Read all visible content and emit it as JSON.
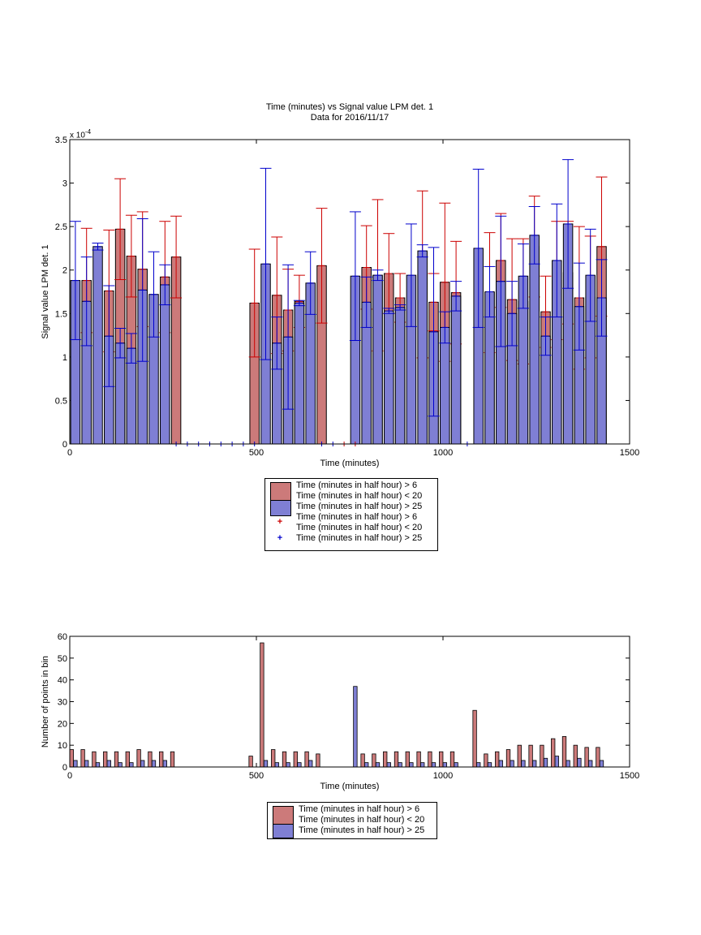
{
  "chart_data": [
    {
      "type": "bar",
      "title": "Time (minutes) vs Signal value LPM det. 1",
      "subtitle": "Data for 2016/11/17",
      "xlabel": "Time (minutes)",
      "ylabel": "Signal value LPM det. 1",
      "exponent_label": "x 10",
      "exponent_power": "-4",
      "xlim": [
        0,
        1500
      ],
      "ylim": [
        0,
        3.5
      ],
      "x_ticks": [
        "0",
        "500",
        "1000",
        "1500"
      ],
      "y_ticks": [
        "0",
        "0.5",
        "1",
        "1.5",
        "2",
        "2.5",
        "3",
        "3.5"
      ],
      "bar_width_minutes": 25,
      "series": [
        {
          "name": "Time (minutes in half hour) > 6 Time (minutes in half hour) < 20",
          "color": "#cc7a7a",
          "points": [
            {
              "x": 45,
              "y": 1.88,
              "err": 0.6
            },
            {
              "x": 105,
              "y": 1.76,
              "err": 0.7
            },
            {
              "x": 135,
              "y": 2.47,
              "err": 0.58
            },
            {
              "x": 165,
              "y": 2.16,
              "err": 0.47
            },
            {
              "x": 195,
              "y": 2.01,
              "err": 0.66
            },
            {
              "x": 255,
              "y": 1.92,
              "err": 0.64
            },
            {
              "x": 285,
              "y": 2.15,
              "err": 0.47
            },
            {
              "x": 495,
              "y": 1.62,
              "err": 0.62
            },
            {
              "x": 555,
              "y": 1.71,
              "err": 0.67
            },
            {
              "x": 585,
              "y": 1.54,
              "err": 0.47
            },
            {
              "x": 615,
              "y": 1.64,
              "err": 0.3
            },
            {
              "x": 675,
              "y": 2.05,
              "err": 0.66
            },
            {
              "x": 795,
              "y": 2.03,
              "err": 0.48
            },
            {
              "x": 825,
              "y": 1.94,
              "err": 0.87
            },
            {
              "x": 855,
              "y": 1.96,
              "err": 0.46
            },
            {
              "x": 885,
              "y": 1.68,
              "err": 0.28
            },
            {
              "x": 945,
              "y": 1.95,
              "err": 0.96
            },
            {
              "x": 975,
              "y": 1.63,
              "err": 0.33
            },
            {
              "x": 1005,
              "y": 1.86,
              "err": 0.91
            },
            {
              "x": 1035,
              "y": 1.74,
              "err": 0.59
            },
            {
              "x": 1125,
              "y": 1.74,
              "err": 0.69
            },
            {
              "x": 1155,
              "y": 2.11,
              "err": 0.54
            },
            {
              "x": 1185,
              "y": 1.66,
              "err": 0.7
            },
            {
              "x": 1215,
              "y": 1.64,
              "err": 0.72
            },
            {
              "x": 1245,
              "y": 2.27,
              "err": 0.58
            },
            {
              "x": 1275,
              "y": 1.52,
              "err": 0.41
            },
            {
              "x": 1305,
              "y": 1.88,
              "err": 0.68
            },
            {
              "x": 1335,
              "y": 1.97,
              "err": 0.59
            },
            {
              "x": 1365,
              "y": 1.68,
              "err": 0.82
            },
            {
              "x": 1395,
              "y": 1.69,
              "err": 0.7
            },
            {
              "x": 1425,
              "y": 2.27,
              "err": 0.8
            }
          ]
        },
        {
          "name": "Time (minutes in half hour) > 25",
          "color": "#7f7fd4",
          "points": [
            {
              "x": 15,
              "y": 1.88,
              "err": 0.68
            },
            {
              "x": 45,
              "y": 1.64,
              "err": 0.51
            },
            {
              "x": 75,
              "y": 2.27,
              "err": 0.04
            },
            {
              "x": 105,
              "y": 1.24,
              "err": 0.58
            },
            {
              "x": 135,
              "y": 1.16,
              "err": 0.17
            },
            {
              "x": 165,
              "y": 1.1,
              "err": 0.17
            },
            {
              "x": 195,
              "y": 1.77,
              "err": 0.82
            },
            {
              "x": 225,
              "y": 1.72,
              "err": 0.49
            },
            {
              "x": 255,
              "y": 1.83,
              "err": 0.23
            },
            {
              "x": 525,
              "y": 2.07,
              "err": 1.1
            },
            {
              "x": 555,
              "y": 1.16,
              "err": 0.3
            },
            {
              "x": 585,
              "y": 1.23,
              "err": 0.83
            },
            {
              "x": 615,
              "y": 1.62,
              "err": 0.03
            },
            {
              "x": 645,
              "y": 1.85,
              "err": 0.36
            },
            {
              "x": 765,
              "y": 1.93,
              "err": 0.74
            },
            {
              "x": 795,
              "y": 1.63,
              "err": 0.29
            },
            {
              "x": 825,
              "y": 1.94,
              "err": 0.06
            },
            {
              "x": 855,
              "y": 1.53,
              "err": 0.03
            },
            {
              "x": 885,
              "y": 1.57,
              "err": 0.03
            },
            {
              "x": 915,
              "y": 1.94,
              "err": 0.59
            },
            {
              "x": 945,
              "y": 2.22,
              "err": 0.07
            },
            {
              "x": 975,
              "y": 1.29,
              "err": 0.97
            },
            {
              "x": 1005,
              "y": 1.34,
              "err": 0.18
            },
            {
              "x": 1035,
              "y": 1.7,
              "err": 0.17
            },
            {
              "x": 1095,
              "y": 2.25,
              "err": 0.91
            },
            {
              "x": 1125,
              "y": 1.75,
              "err": 0.29
            },
            {
              "x": 1155,
              "y": 1.87,
              "err": 0.75
            },
            {
              "x": 1185,
              "y": 1.5,
              "err": 0.37
            },
            {
              "x": 1215,
              "y": 1.93,
              "err": 0.37
            },
            {
              "x": 1245,
              "y": 2.4,
              "err": 0.33
            },
            {
              "x": 1275,
              "y": 1.24,
              "err": 0.22
            },
            {
              "x": 1305,
              "y": 2.11,
              "err": 0.65
            },
            {
              "x": 1335,
              "y": 2.53,
              "err": 0.74
            },
            {
              "x": 1365,
              "y": 1.58,
              "err": 0.5
            },
            {
              "x": 1395,
              "y": 1.94,
              "err": 0.53
            },
            {
              "x": 1425,
              "y": 1.68,
              "err": 0.44
            }
          ]
        }
      ],
      "zero_markers": [
        {
          "x": 285,
          "color": "#0000cc"
        },
        {
          "x": 315,
          "color": "#0000cc"
        },
        {
          "x": 345,
          "color": "#0000cc"
        },
        {
          "x": 375,
          "color": "#0000cc"
        },
        {
          "x": 405,
          "color": "#0000cc"
        },
        {
          "x": 435,
          "color": "#0000cc"
        },
        {
          "x": 465,
          "color": "#0000cc"
        },
        {
          "x": 495,
          "color": "#0000cc"
        },
        {
          "x": 675,
          "color": "#0000cc"
        },
        {
          "x": 705,
          "color": "#0000cc"
        },
        {
          "x": 735,
          "color": "#cc0000"
        },
        {
          "x": 765,
          "color": "#cc0000"
        },
        {
          "x": 1065,
          "color": "#0000cc"
        }
      ]
    },
    {
      "type": "bar",
      "xlabel": "Time (minutes)",
      "ylabel": "Number of points in bin",
      "xlim": [
        0,
        1500
      ],
      "ylim": [
        0,
        60
      ],
      "x_ticks": [
        "0",
        "500",
        "1000",
        "1500"
      ],
      "y_ticks": [
        "0",
        "10",
        "20",
        "30",
        "40",
        "50",
        "60"
      ],
      "series": [
        {
          "name": "Time (minutes in half hour) > 6 Time (minutes in half hour) < 20",
          "color": "#cc7a7a",
          "points": [
            {
              "x": 5,
              "y": 8
            },
            {
              "x": 35,
              "y": 8
            },
            {
              "x": 65,
              "y": 7
            },
            {
              "x": 95,
              "y": 7
            },
            {
              "x": 125,
              "y": 7
            },
            {
              "x": 155,
              "y": 7
            },
            {
              "x": 185,
              "y": 8
            },
            {
              "x": 215,
              "y": 7
            },
            {
              "x": 245,
              "y": 7
            },
            {
              "x": 275,
              "y": 7
            },
            {
              "x": 485,
              "y": 5
            },
            {
              "x": 515,
              "y": 57
            },
            {
              "x": 545,
              "y": 8
            },
            {
              "x": 575,
              "y": 7
            },
            {
              "x": 605,
              "y": 7
            },
            {
              "x": 635,
              "y": 7
            },
            {
              "x": 665,
              "y": 6
            },
            {
              "x": 785,
              "y": 6
            },
            {
              "x": 815,
              "y": 6
            },
            {
              "x": 845,
              "y": 7
            },
            {
              "x": 875,
              "y": 7
            },
            {
              "x": 905,
              "y": 7
            },
            {
              "x": 935,
              "y": 7
            },
            {
              "x": 965,
              "y": 7
            },
            {
              "x": 995,
              "y": 7
            },
            {
              "x": 1025,
              "y": 7
            },
            {
              "x": 1085,
              "y": 26
            },
            {
              "x": 1115,
              "y": 6
            },
            {
              "x": 1145,
              "y": 7
            },
            {
              "x": 1175,
              "y": 8
            },
            {
              "x": 1205,
              "y": 10
            },
            {
              "x": 1235,
              "y": 10
            },
            {
              "x": 1265,
              "y": 10
            },
            {
              "x": 1295,
              "y": 13
            },
            {
              "x": 1325,
              "y": 14
            },
            {
              "x": 1355,
              "y": 10
            },
            {
              "x": 1385,
              "y": 9
            },
            {
              "x": 1415,
              "y": 9
            }
          ]
        },
        {
          "name": "Time (minutes in half hour) > 25",
          "color": "#7f7fd4",
          "points": [
            {
              "x": 15,
              "y": 3
            },
            {
              "x": 45,
              "y": 3
            },
            {
              "x": 75,
              "y": 2
            },
            {
              "x": 105,
              "y": 3
            },
            {
              "x": 135,
              "y": 2
            },
            {
              "x": 165,
              "y": 2
            },
            {
              "x": 195,
              "y": 3
            },
            {
              "x": 225,
              "y": 3
            },
            {
              "x": 255,
              "y": 3
            },
            {
              "x": 525,
              "y": 3
            },
            {
              "x": 555,
              "y": 2
            },
            {
              "x": 585,
              "y": 2
            },
            {
              "x": 615,
              "y": 2
            },
            {
              "x": 645,
              "y": 3
            },
            {
              "x": 765,
              "y": 37
            },
            {
              "x": 795,
              "y": 2
            },
            {
              "x": 825,
              "y": 2
            },
            {
              "x": 855,
              "y": 2
            },
            {
              "x": 885,
              "y": 2
            },
            {
              "x": 915,
              "y": 2
            },
            {
              "x": 945,
              "y": 2
            },
            {
              "x": 975,
              "y": 2
            },
            {
              "x": 1005,
              "y": 2
            },
            {
              "x": 1035,
              "y": 2
            },
            {
              "x": 1095,
              "y": 2
            },
            {
              "x": 1125,
              "y": 2
            },
            {
              "x": 1155,
              "y": 3
            },
            {
              "x": 1185,
              "y": 3
            },
            {
              "x": 1215,
              "y": 3
            },
            {
              "x": 1245,
              "y": 3
            },
            {
              "x": 1275,
              "y": 4
            },
            {
              "x": 1305,
              "y": 5
            },
            {
              "x": 1335,
              "y": 3
            },
            {
              "x": 1365,
              "y": 4
            },
            {
              "x": 1395,
              "y": 3
            },
            {
              "x": 1425,
              "y": 3
            }
          ]
        }
      ]
    }
  ],
  "legend_top": {
    "entries": [
      {
        "line1": "Time (minutes in half hour) > 6",
        "line2": "Time (minutes in half hour) < 20"
      },
      {
        "line1": "Time (minutes in half hour) > 25"
      },
      {
        "line1": "Time (minutes in half hour) > 6",
        "line2": "Time (minutes in half hour) < 20",
        "marker": "+",
        "color": "#cc0000"
      },
      {
        "line1": "Time (minutes in half hour) > 25",
        "marker": "+",
        "color": "#0000cc"
      }
    ]
  },
  "legend_bottom": {
    "entries": [
      {
        "line1": "Time (minutes in half hour) > 6",
        "line2": "Time (minutes in half hour) < 20"
      },
      {
        "line1": "Time (minutes in half hour) > 25"
      }
    ]
  }
}
